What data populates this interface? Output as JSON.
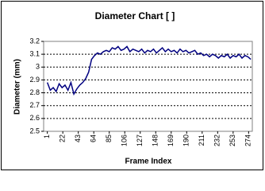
{
  "chart_data": {
    "type": "line",
    "title": "Diameter Chart [   ]",
    "x_label": "Frame Index",
    "y_label": "Diameter (mm)",
    "color": "#000080",
    "grid": true,
    "xlim": [
      -4,
      279
    ],
    "xticks": [
      1,
      22,
      43,
      64,
      85,
      106,
      127,
      148,
      169,
      190,
      211,
      232,
      253,
      274
    ],
    "ylim": [
      2.5,
      3.2
    ],
    "yticks": [
      2.5,
      2.6,
      2.7,
      2.8,
      2.9,
      3,
      3.1,
      3.2
    ],
    "x": [
      1,
      5,
      9,
      13,
      17,
      21,
      25,
      29,
      33,
      37,
      41,
      45,
      49,
      53,
      57,
      61,
      65,
      69,
      73,
      77,
      81,
      85,
      89,
      93,
      97,
      101,
      105,
      109,
      113,
      117,
      121,
      125,
      129,
      133,
      137,
      141,
      145,
      149,
      153,
      157,
      161,
      165,
      169,
      173,
      177,
      181,
      185,
      189,
      193,
      197,
      201,
      205,
      209,
      213,
      217,
      221,
      225,
      229,
      233,
      237,
      241,
      245,
      249,
      253,
      257,
      261,
      265,
      269,
      273,
      277
    ],
    "values": [
      2.88,
      2.82,
      2.84,
      2.81,
      2.87,
      2.84,
      2.86,
      2.82,
      2.88,
      2.79,
      2.83,
      2.86,
      2.88,
      2.91,
      2.96,
      3.06,
      3.09,
      3.11,
      3.1,
      3.12,
      3.13,
      3.12,
      3.15,
      3.14,
      3.16,
      3.13,
      3.14,
      3.16,
      3.12,
      3.14,
      3.13,
      3.12,
      3.14,
      3.11,
      3.13,
      3.12,
      3.14,
      3.11,
      3.13,
      3.15,
      3.12,
      3.14,
      3.12,
      3.13,
      3.11,
      3.14,
      3.12,
      3.13,
      3.11,
      3.12,
      3.13,
      3.1,
      3.11,
      3.09,
      3.1,
      3.08,
      3.1,
      3.09,
      3.07,
      3.09,
      3.08,
      3.1,
      3.07,
      3.09,
      3.08,
      3.1,
      3.07,
      3.09,
      3.08,
      3.06
    ]
  }
}
